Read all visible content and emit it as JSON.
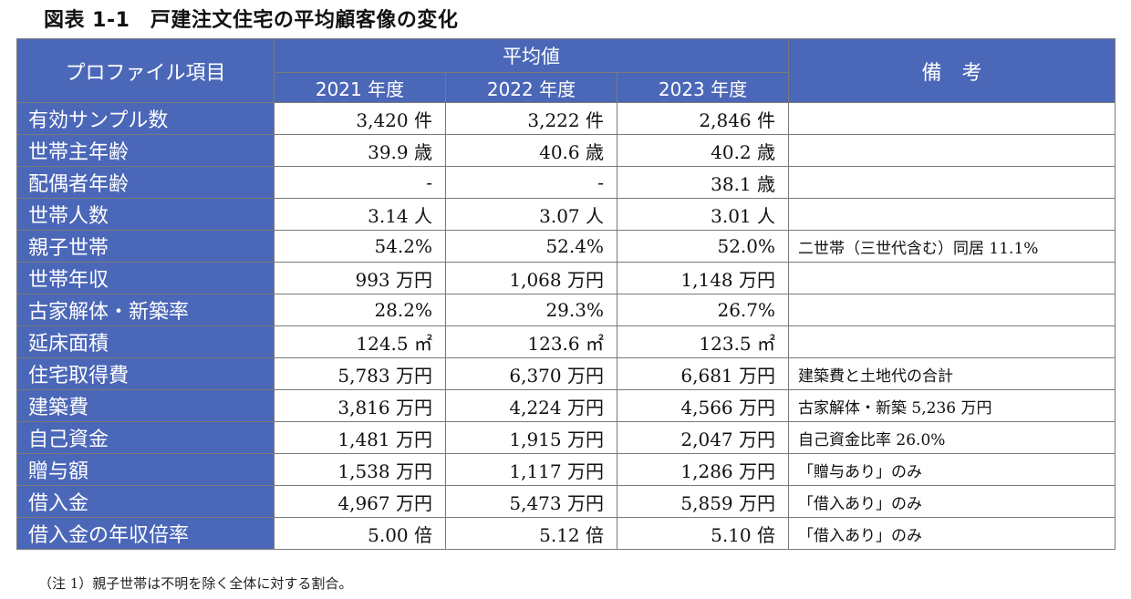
{
  "title": "図表 1-1　戸建注文住宅の平均顧客像の変化",
  "header": {
    "item_label": "プロファイル項目",
    "group_label": "平均値",
    "years": [
      "2021 年度",
      "2022 年度",
      "2023 年度"
    ],
    "remarks_label": "備　考"
  },
  "rows": [
    {
      "label": "有効サンプル数",
      "v": [
        "3,420 件",
        "3,222 件",
        "2,846 件"
      ],
      "note": ""
    },
    {
      "label": "世帯主年齢",
      "v": [
        "39.9 歳",
        "40.6 歳",
        "40.2 歳"
      ],
      "note": ""
    },
    {
      "label": "配偶者年齢",
      "v": [
        "-",
        "-",
        "38.1 歳"
      ],
      "note": ""
    },
    {
      "label": "世帯人数",
      "v": [
        "3.14 人",
        "3.07 人",
        "3.01 人"
      ],
      "note": ""
    },
    {
      "label": "親子世帯",
      "v": [
        "54.2%",
        "52.4%",
        "52.0%"
      ],
      "note": "二世帯（三世代含む）同居 11.1%"
    },
    {
      "label": "世帯年収",
      "v": [
        "993 万円",
        "1,068 万円",
        "1,148 万円"
      ],
      "note": ""
    },
    {
      "label": "古家解体・新築率",
      "v": [
        "28.2%",
        "29.3%",
        "26.7%"
      ],
      "note": ""
    },
    {
      "label": "延床面積",
      "v": [
        "124.5 ㎡",
        "123.6 ㎡",
        "123.5 ㎡"
      ],
      "note": ""
    },
    {
      "label": "住宅取得費",
      "v": [
        "5,783 万円",
        "6,370 万円",
        "6,681 万円"
      ],
      "note": "建築費と土地代の合計"
    },
    {
      "label": "建築費",
      "v": [
        "3,816 万円",
        "4,224 万円",
        "4,566 万円"
      ],
      "note": "古家解体・新築 5,236 万円"
    },
    {
      "label": "自己資金",
      "v": [
        "1,481 万円",
        "1,915 万円",
        "2,047 万円"
      ],
      "note": "自己資金比率 26.0%"
    },
    {
      "label": "贈与額",
      "v": [
        "1,538 万円",
        "1,117 万円",
        "1,286 万円"
      ],
      "note": "「贈与あり」のみ"
    },
    {
      "label": "借入金",
      "v": [
        "4,967 万円",
        "5,473 万円",
        "5,859 万円"
      ],
      "note": "「借入あり」のみ"
    },
    {
      "label": "借入金の年収倍率",
      "v": [
        "5.00 倍",
        "5.12 倍",
        "5.10 倍"
      ],
      "note": "「借入あり」のみ"
    }
  ],
  "footnote": "（注 1）親子世帯は不明を除く全体に対する割合。",
  "colors": {
    "header_bg": "#4b67b8",
    "header_text": "#ffffff"
  }
}
